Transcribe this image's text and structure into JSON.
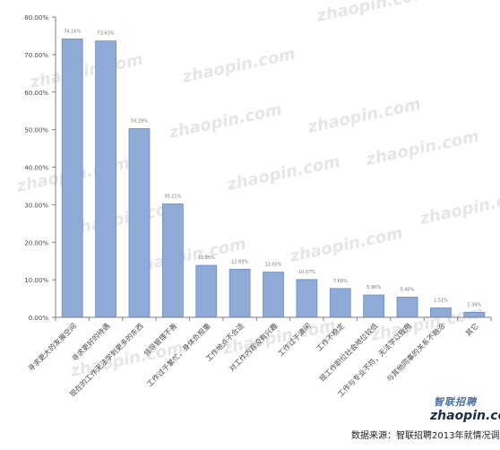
{
  "colors": {
    "bar": "#8EAAD6",
    "bar_stroke": "#6F8FC1",
    "axis": "#7F7F7F",
    "grid": "#D9D9D9",
    "text": "#4A4A4A",
    "watermark": "#E6E6E6"
  },
  "watermark": {
    "text": "zhaopin.com"
  },
  "chart_data": {
    "type": "bar",
    "title": "",
    "xlabel": "",
    "ylabel": "",
    "ylim": [
      0,
      80
    ],
    "y_ticks": [
      0,
      10,
      20,
      30,
      40,
      50,
      60,
      70,
      80
    ],
    "y_tick_labels": [
      "0.00%",
      "10.00%",
      "20.00%",
      "30.00%",
      "40.00%",
      "50.00%",
      "60.00%",
      "70.00%",
      "80.00%"
    ],
    "grid": false,
    "categories": [
      "寻求更大的发展空间",
      "寻求更好的待遇",
      "现在的工作无法学到更多的东西",
      "领导管理不善",
      "工作过于繁忙，身体负担重",
      "工作地点不合适",
      "对工作内容没有兴趣",
      "工作过于清闲",
      "工作不稳定",
      "现工作职位社会地位较低",
      "工作与专业不符，无法学以致用",
      "与其他同事的关系不融洽",
      "其它"
    ],
    "values": [
      74.16,
      73.63,
      50.29,
      30.21,
      13.85,
      12.83,
      12.05,
      10.07,
      7.69,
      5.96,
      5.4,
      2.51,
      1.34
    ],
    "value_labels": [
      "74.16%",
      "73.63%",
      "50.29%",
      "30.21%",
      "13.85%",
      "12.83%",
      "12.05%",
      "10.07%",
      "7.69%",
      "5.96%",
      "5.40%",
      "2.51%",
      "1.34%"
    ]
  },
  "footer": {
    "source": "数据来源：智联招聘2013年就情况调研",
    "logo_top": "智联招聘",
    "logo_bottom": "zhaopin.com"
  }
}
